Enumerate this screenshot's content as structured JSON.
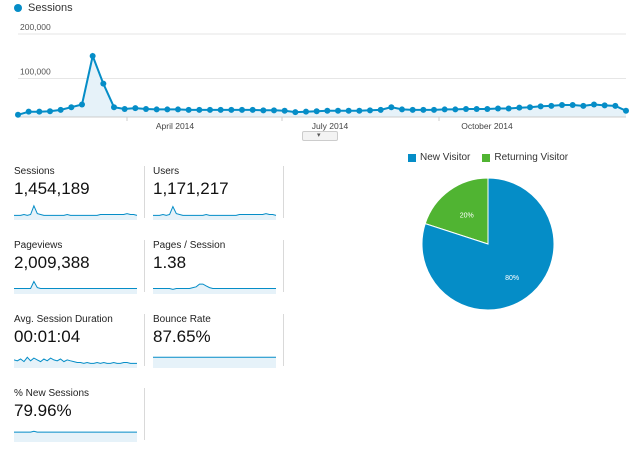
{
  "colors": {
    "accent": "#058dc7",
    "returning": "#50b432",
    "fill": "#e6f2f9"
  },
  "header": {
    "legend_label": "Sessions"
  },
  "chart_data": [
    {
      "type": "line",
      "title": "Sessions",
      "y_ticks": [
        "200,000",
        "100,000"
      ],
      "ylim": [
        0,
        200000
      ],
      "x_tick_labels": [
        "April 2014",
        "July 2014",
        "October 2014"
      ],
      "series": [
        {
          "name": "Sessions",
          "values": [
            5000,
            12000,
            12000,
            13000,
            16000,
            22000,
            28000,
            137000,
            75000,
            22000,
            18000,
            20000,
            18000,
            17000,
            17000,
            17000,
            16000,
            16000,
            16000,
            16000,
            16000,
            16000,
            16000,
            15000,
            15000,
            14000,
            11000,
            12000,
            13000,
            14000,
            14000,
            14000,
            14000,
            15000,
            16000,
            22000,
            17000,
            16000,
            16000,
            16000,
            17000,
            17000,
            18000,
            18000,
            18000,
            19000,
            19000,
            21000,
            22000,
            24000,
            25000,
            27000,
            27000,
            25000,
            28000,
            26000,
            25000,
            14000
          ]
        }
      ]
    },
    {
      "type": "pie",
      "title": "",
      "legend": [
        "New Visitor",
        "Returning Visitor"
      ],
      "values": [
        80,
        20
      ],
      "labels": [
        "80%",
        "20%"
      ],
      "colors": [
        "#058dc7",
        "#50b432"
      ]
    }
  ],
  "metrics": [
    {
      "label": "Sessions",
      "value": "1,454,189",
      "spark": [
        3,
        3,
        3,
        4,
        3,
        4,
        14,
        5,
        4,
        3,
        3,
        3,
        3,
        3,
        3,
        3,
        4,
        3,
        3,
        3,
        3,
        3,
        3,
        3,
        3,
        3,
        4,
        4,
        4,
        4,
        4,
        4,
        4,
        4,
        5,
        4,
        4,
        3
      ]
    },
    {
      "label": "Users",
      "value": "1,171,217",
      "spark": [
        3,
        3,
        3,
        4,
        3,
        4,
        13,
        5,
        4,
        3,
        3,
        3,
        3,
        3,
        3,
        3,
        4,
        3,
        3,
        3,
        3,
        3,
        3,
        3,
        3,
        3,
        4,
        4,
        4,
        4,
        4,
        4,
        4,
        4,
        5,
        4,
        4,
        3
      ]
    },
    {
      "label": "Pageviews",
      "value": "2,009,388",
      "spark": [
        4,
        4,
        4,
        4,
        4,
        4,
        12,
        5,
        4,
        4,
        4,
        4,
        4,
        4,
        4,
        4,
        4,
        4,
        4,
        4,
        4,
        4,
        4,
        4,
        4,
        4,
        4,
        4,
        4,
        4,
        4,
        4,
        4,
        4,
        4,
        4,
        4,
        4
      ]
    },
    {
      "label": "Pages / Session",
      "value": "1.38",
      "spark": [
        4,
        4,
        4,
        4,
        4,
        4,
        3,
        4,
        4,
        4,
        4,
        4,
        5,
        6,
        9,
        9,
        7,
        5,
        4,
        4,
        4,
        4,
        4,
        4,
        4,
        4,
        4,
        4,
        4,
        4,
        4,
        4,
        4,
        4,
        4,
        4,
        4,
        4
      ]
    },
    {
      "label": "Avg. Session Duration",
      "value": "00:01:04",
      "spark": [
        7,
        6,
        8,
        5,
        10,
        6,
        9,
        7,
        5,
        8,
        6,
        9,
        7,
        6,
        8,
        5,
        7,
        6,
        5,
        4,
        4,
        3,
        4,
        3,
        3,
        4,
        3,
        4,
        3,
        3,
        4,
        3,
        3,
        4,
        4,
        3,
        3,
        3
      ]
    },
    {
      "label": "Bounce Rate",
      "value": "87.65%",
      "spark": [
        10,
        10,
        10,
        10,
        10,
        10,
        10,
        10,
        10,
        10,
        10,
        10,
        10,
        10,
        10,
        10,
        10,
        10,
        10,
        10,
        10,
        10,
        10,
        10,
        10,
        10,
        10,
        10,
        10,
        10,
        10,
        10,
        10,
        10,
        10,
        10,
        10,
        10
      ]
    },
    {
      "label": "% New Sessions",
      "value": "79.96%",
      "spark": [
        9,
        9,
        9,
        9,
        9,
        9,
        10,
        9,
        9,
        9,
        9,
        9,
        9,
        9,
        9,
        9,
        9,
        9,
        9,
        9,
        9,
        9,
        9,
        9,
        9,
        9,
        9,
        9,
        9,
        9,
        9,
        9,
        9,
        9,
        9,
        9,
        9,
        9
      ]
    }
  ]
}
